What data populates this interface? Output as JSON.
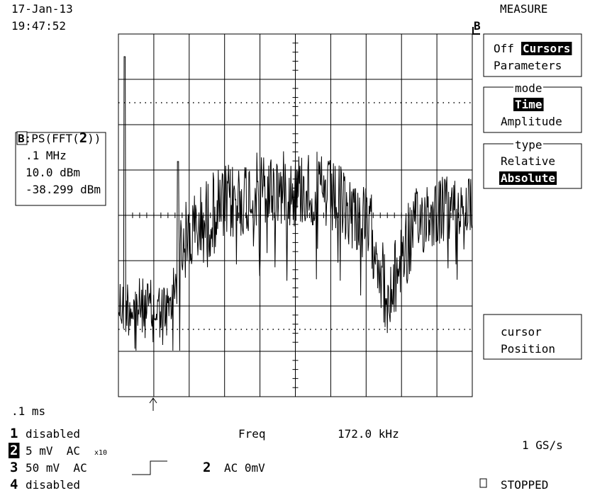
{
  "header": {
    "date": "17-Jan-13",
    "time": "19:47:52"
  },
  "menu": {
    "title": "MEASURE",
    "marker": "B",
    "buttons": [
      {
        "items": [
          "Off",
          "Cursors",
          "Parameters"
        ]
      },
      {
        "label": "mode",
        "items": [
          "Time",
          "Amplitude"
        ]
      },
      {
        "label": "type",
        "items": [
          "Relative",
          "Absolute"
        ]
      },
      {
        "items": [
          "cursor",
          "Position"
        ]
      }
    ]
  },
  "readout": {
    "trace": "B",
    "function": ":PS(FFT(",
    "channel": "2",
    "close": "))",
    "lines": [
      ".1 MHz",
      "10.0 dBm",
      "-38.299 dBm"
    ]
  },
  "timebase": ".1 ms",
  "channels": [
    {
      "number": "1",
      "setting": "disabled"
    },
    {
      "number": "2",
      "setting": "5 mV  AC",
      "probe": "x10"
    },
    {
      "number": "3",
      "setting": "50 mV  AC"
    },
    {
      "number": "4",
      "setting": "disabled"
    }
  ],
  "measurement": {
    "label": "Freq",
    "value": "172.0 kHz"
  },
  "trigger": {
    "channel": "2",
    "setting": "AC 0mV"
  },
  "sample_rate": "1 GS/s",
  "status": "STOPPED"
}
